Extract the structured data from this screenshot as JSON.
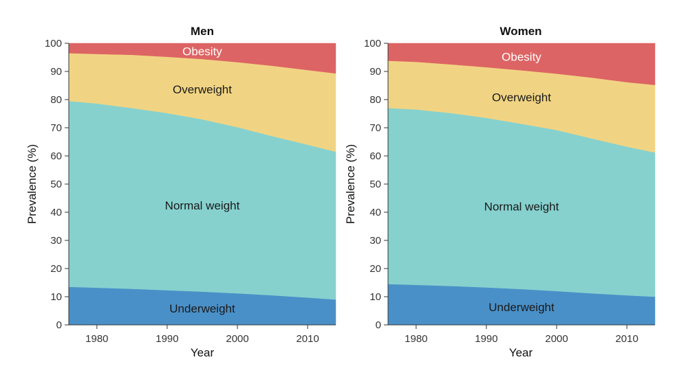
{
  "chart_data": [
    {
      "type": "area",
      "stacked": true,
      "title": "Men",
      "xlabel": "Year",
      "ylabel": "Prevalence (%)",
      "xlim": [
        1976,
        2014
      ],
      "ylim": [
        0,
        100
      ],
      "xticks": [
        1980,
        1990,
        2000,
        2010
      ],
      "yticks": [
        0,
        10,
        20,
        30,
        40,
        50,
        60,
        70,
        80,
        90,
        100
      ],
      "x": [
        1976,
        1980,
        1985,
        1990,
        1995,
        2000,
        2005,
        2010,
        2014
      ],
      "series": [
        {
          "name": "Underweight",
          "color": "#4a90c8",
          "label_color": "#1a1a1a",
          "values": [
            13.5,
            13.2,
            12.8,
            12.3,
            11.8,
            11.2,
            10.5,
            9.7,
            9.0
          ]
        },
        {
          "name": "Normal weight",
          "color": "#86d1ce",
          "label_color": "#1a1a1a",
          "values": [
            66.0,
            65.4,
            64.2,
            62.9,
            61.2,
            59.0,
            56.5,
            54.3,
            52.5
          ]
        },
        {
          "name": "Overweight",
          "color": "#f1d483",
          "label_color": "#1a1a1a",
          "values": [
            17.0,
            17.6,
            18.9,
            20.0,
            21.4,
            23.1,
            25.0,
            26.5,
            27.8
          ]
        },
        {
          "name": "Obesity",
          "color": "#dd6464",
          "label_color": "#ffffff",
          "values": [
            3.5,
            3.8,
            4.1,
            4.8,
            5.6,
            6.7,
            8.0,
            9.5,
            10.7
          ]
        }
      ]
    },
    {
      "type": "area",
      "stacked": true,
      "title": "Women",
      "xlabel": "Year",
      "ylabel": "Prevalence (%)",
      "xlim": [
        1976,
        2014
      ],
      "ylim": [
        0,
        100
      ],
      "xticks": [
        1980,
        1990,
        2000,
        2010
      ],
      "yticks": [
        0,
        10,
        20,
        30,
        40,
        50,
        60,
        70,
        80,
        90,
        100
      ],
      "x": [
        1976,
        1980,
        1985,
        1990,
        1995,
        2000,
        2005,
        2010,
        2014
      ],
      "series": [
        {
          "name": "Underweight",
          "color": "#4a90c8",
          "label_color": "#1a1a1a",
          "values": [
            14.5,
            14.2,
            13.8,
            13.3,
            12.7,
            12.0,
            11.2,
            10.5,
            10.0
          ]
        },
        {
          "name": "Normal weight",
          "color": "#86d1ce",
          "label_color": "#1a1a1a",
          "values": [
            62.5,
            62.3,
            61.4,
            60.2,
            58.7,
            57.2,
            55.0,
            52.8,
            51.2
          ]
        },
        {
          "name": "Overweight",
          "color": "#f1d483",
          "label_color": "#1a1a1a",
          "values": [
            16.8,
            16.9,
            17.3,
            18.0,
            19.0,
            20.0,
            21.6,
            22.9,
            24.0
          ]
        },
        {
          "name": "Obesity",
          "color": "#dd6464",
          "label_color": "#ffffff",
          "values": [
            6.2,
            6.6,
            7.5,
            8.5,
            9.6,
            10.8,
            12.2,
            13.8,
            14.8
          ]
        }
      ]
    }
  ]
}
